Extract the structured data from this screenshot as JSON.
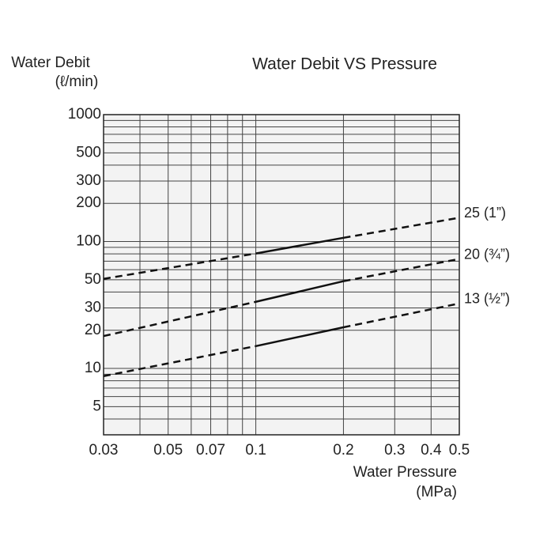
{
  "chart_data": {
    "type": "line",
    "title": "Water Debit VS Pressure",
    "y_label": [
      "Water Debit",
      "(ℓ/min)"
    ],
    "x_label": [
      "Water Pressure",
      "(MPa)"
    ],
    "log_x": true,
    "log_y": true,
    "grid": true,
    "xlim": [
      0.03,
      0.5
    ],
    "ylim": [
      3,
      1000
    ],
    "xticks": [
      0.03,
      0.05,
      0.07,
      0.1,
      0.2,
      0.3,
      0.4,
      0.5
    ],
    "x_minor_grid": [
      0.04,
      0.06,
      0.08,
      0.09
    ],
    "yticks": [
      1000,
      500,
      300,
      200,
      100,
      50,
      30,
      20,
      10,
      5
    ],
    "y_minor_grid": [
      900,
      800,
      700,
      600,
      400,
      90,
      80,
      70,
      60,
      40,
      9,
      8,
      7,
      6,
      4
    ],
    "x": [
      0.03,
      0.1,
      0.2,
      0.5
    ],
    "segment_styles": [
      "dashed",
      "solid",
      "dashed"
    ],
    "series": [
      {
        "name": "25 (1”)",
        "color": "#111111",
        "values": [
          50.8,
          80.5,
          107,
          154
        ]
      },
      {
        "name": "20 (¾”)",
        "color": "#111111",
        "values": [
          18,
          33.5,
          48.7,
          72.9
        ]
      },
      {
        "name": "13 (½”)",
        "color": "#111111",
        "values": [
          8.7,
          15,
          21.1,
          32.5
        ]
      }
    ]
  }
}
